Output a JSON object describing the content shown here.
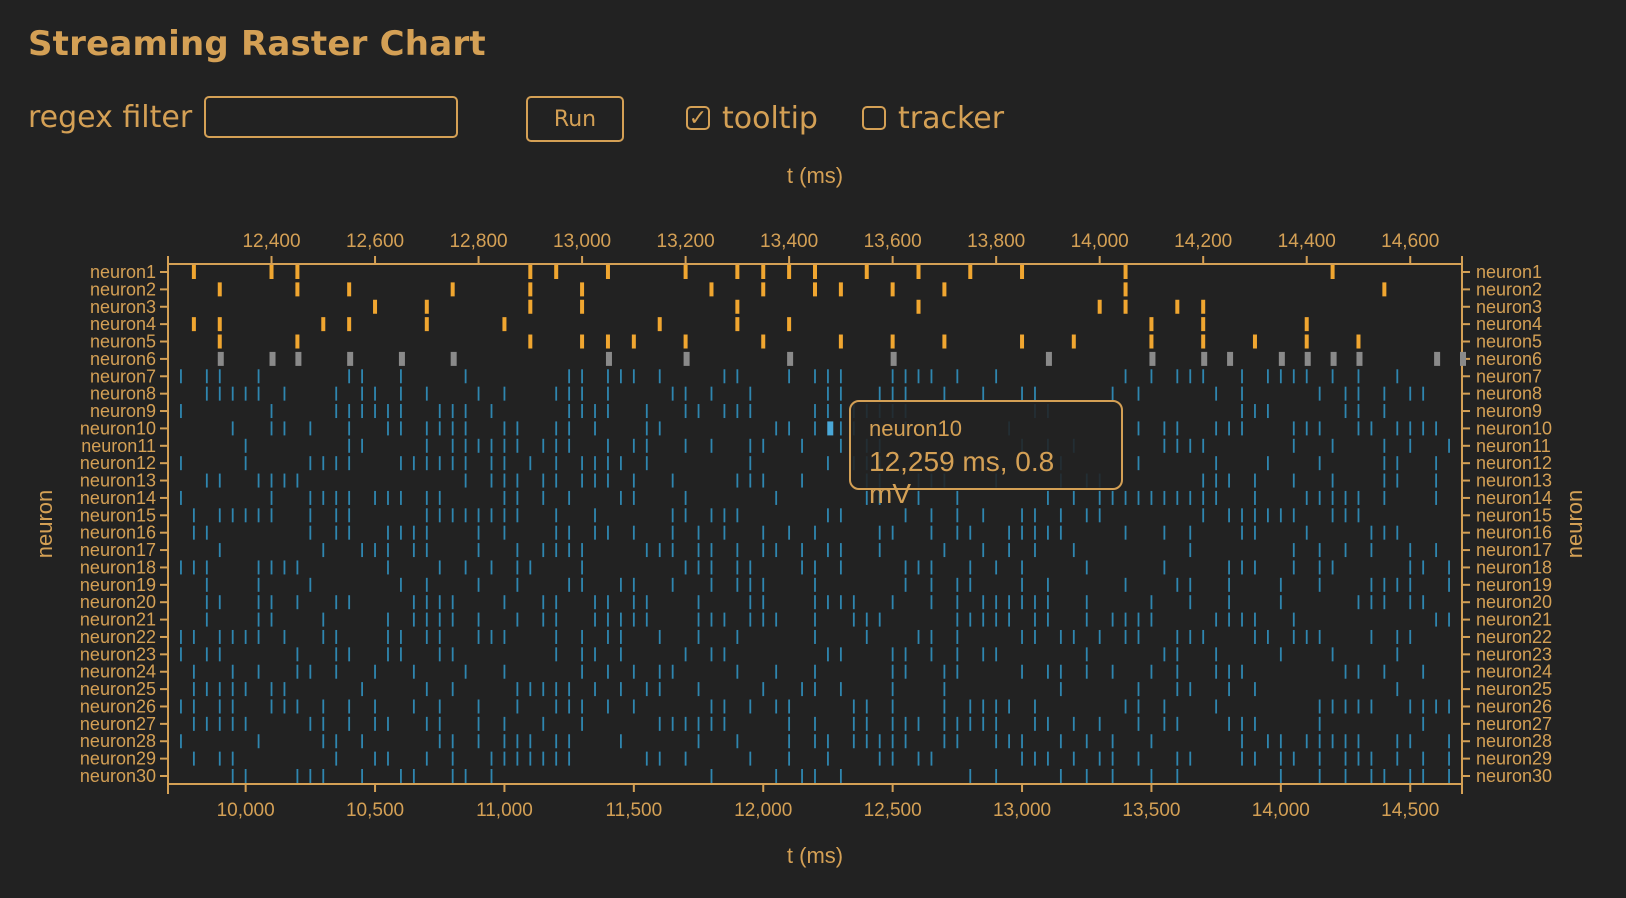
{
  "page": {
    "title": "Streaming Raster Chart"
  },
  "controls": {
    "filter_label": "regex filter",
    "filter_value": "",
    "filter_placeholder": "",
    "run_label": "Run",
    "tooltip_label": "tooltip",
    "tooltip_checked": true,
    "tracker_label": "tracker",
    "tracker_checked": false
  },
  "tooltip": {
    "series": "neuron10",
    "value": "12,259 ms, 0.8 mV"
  },
  "colors": {
    "background": "#222222",
    "accent": "#d4a055",
    "spike_highlight": "#f0a630",
    "spike_gray": "#8a8a8a",
    "spike_blue": "#2f86b0",
    "spike_selected": "#4aa8d8"
  },
  "chart_data": {
    "type": "raster",
    "xlabel_top": "t (ms)",
    "xlabel_bottom": "t (ms)",
    "ylabel_left": "neuron",
    "ylabel_right": "neuron",
    "xlim_bottom": [
      9700,
      14700
    ],
    "xlim_top": [
      12200,
      14700
    ],
    "xticks_bottom": [
      "10,000",
      "10,500",
      "11,000",
      "11,500",
      "12,000",
      "12,500",
      "13,000",
      "13,500",
      "14,000",
      "14,500"
    ],
    "xticks_bottom_values": [
      10000,
      10500,
      11000,
      11500,
      12000,
      12500,
      13000,
      13500,
      14000,
      14500
    ],
    "xticks_top": [
      "12,400",
      "12,600",
      "12,800",
      "13,000",
      "13,200",
      "13,400",
      "13,600",
      "13,800",
      "14,000",
      "14,200",
      "14,400",
      "14,600"
    ],
    "xticks_top_values": [
      12400,
      12600,
      12800,
      13000,
      13200,
      13400,
      13600,
      13800,
      14000,
      14200,
      14400,
      14600
    ],
    "neurons": [
      "neuron1",
      "neuron2",
      "neuron3",
      "neuron4",
      "neuron5",
      "neuron6",
      "neuron7",
      "neuron8",
      "neuron9",
      "neuron10",
      "neuron11",
      "neuron12",
      "neuron13",
      "neuron14",
      "neuron15",
      "neuron16",
      "neuron17",
      "neuron18",
      "neuron19",
      "neuron20",
      "neuron21",
      "neuron22",
      "neuron23",
      "neuron24",
      "neuron25",
      "neuron26",
      "neuron27",
      "neuron28",
      "neuron29",
      "neuron30"
    ],
    "highlighted_neurons": [
      "neuron1",
      "neuron2",
      "neuron3",
      "neuron4",
      "neuron5"
    ],
    "gray_neurons": [
      "neuron6"
    ],
    "selected_spike": {
      "neuron": "neuron10",
      "t": 12259,
      "value": 0.8
    },
    "highlight_spikes": {
      "neuron1": [
        9800,
        10100,
        10200,
        11100,
        11200,
        11400,
        11700,
        11900,
        12000,
        12100,
        12200,
        12400,
        12600,
        12800,
        13000,
        13400,
        14200
      ],
      "neuron2": [
        9900,
        10200,
        10400,
        10800,
        11100,
        11300,
        11800,
        12000,
        12200,
        12300,
        12500,
        12700,
        13400,
        14400
      ],
      "neuron3": [
        10500,
        10700,
        11100,
        11300,
        11900,
        12600,
        13300,
        13400,
        13600,
        13700
      ],
      "neuron4": [
        9800,
        9900,
        10300,
        10400,
        10700,
        11000,
        11600,
        11900,
        12100,
        13500,
        13700,
        14100
      ],
      "neuron5": [
        9900,
        10200,
        11100,
        11300,
        11400,
        11500,
        11700,
        12000,
        12300,
        12500,
        12700,
        13000,
        13200,
        13500,
        13700,
        13900,
        14100,
        14300
      ],
      "neuron6": [
        9900,
        10100,
        10200,
        10400,
        10600,
        10800,
        11400,
        11700,
        12100,
        12500,
        13100,
        13500,
        13700,
        13800,
        14000,
        14100,
        14200,
        14300,
        14600,
        14700
      ]
    },
    "grid": false,
    "legend": "none"
  }
}
